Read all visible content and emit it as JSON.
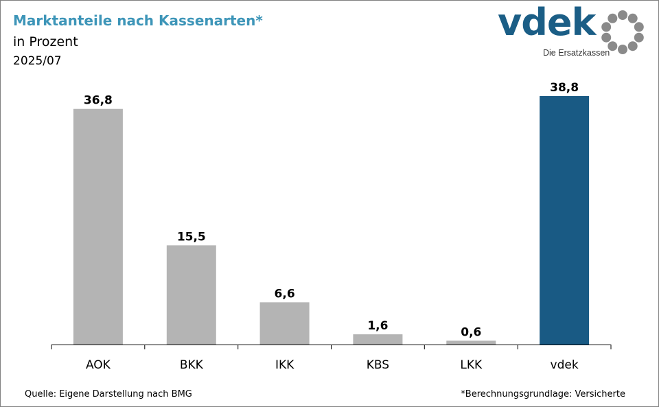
{
  "header": {
    "title": "Marktanteile nach Kassenarten*",
    "subtitle": "in Prozent",
    "period": "2025/07"
  },
  "logo": {
    "wordmark": "vdek",
    "tagline": "Die Ersatzkassen"
  },
  "footer": {
    "source": "Quelle: Eigene Darstellung nach BMG",
    "note": "*Berechnungsgrundlage: Versicherte"
  },
  "colors": {
    "title": "#3d95b8",
    "bar_default": "#b4b4b4",
    "bar_highlight": "#195a84",
    "logo_text": "#1b5e86",
    "logo_ring": "#8a8a8a"
  },
  "chart_data": {
    "type": "bar",
    "title": "Marktanteile nach Kassenarten*",
    "subtitle": "in Prozent",
    "xlabel": "",
    "ylabel": "in Prozent",
    "categories": [
      "AOK",
      "BKK",
      "IKK",
      "KBS",
      "LKK",
      "vdek"
    ],
    "values": [
      36.8,
      15.5,
      6.6,
      1.6,
      0.6,
      38.8
    ],
    "value_labels": [
      "36,8",
      "15,5",
      "6,6",
      "1,6",
      "0,6",
      "38,8"
    ],
    "highlight": "vdek",
    "ylim": [
      0,
      38.8
    ],
    "grid": false,
    "legend": "none"
  }
}
